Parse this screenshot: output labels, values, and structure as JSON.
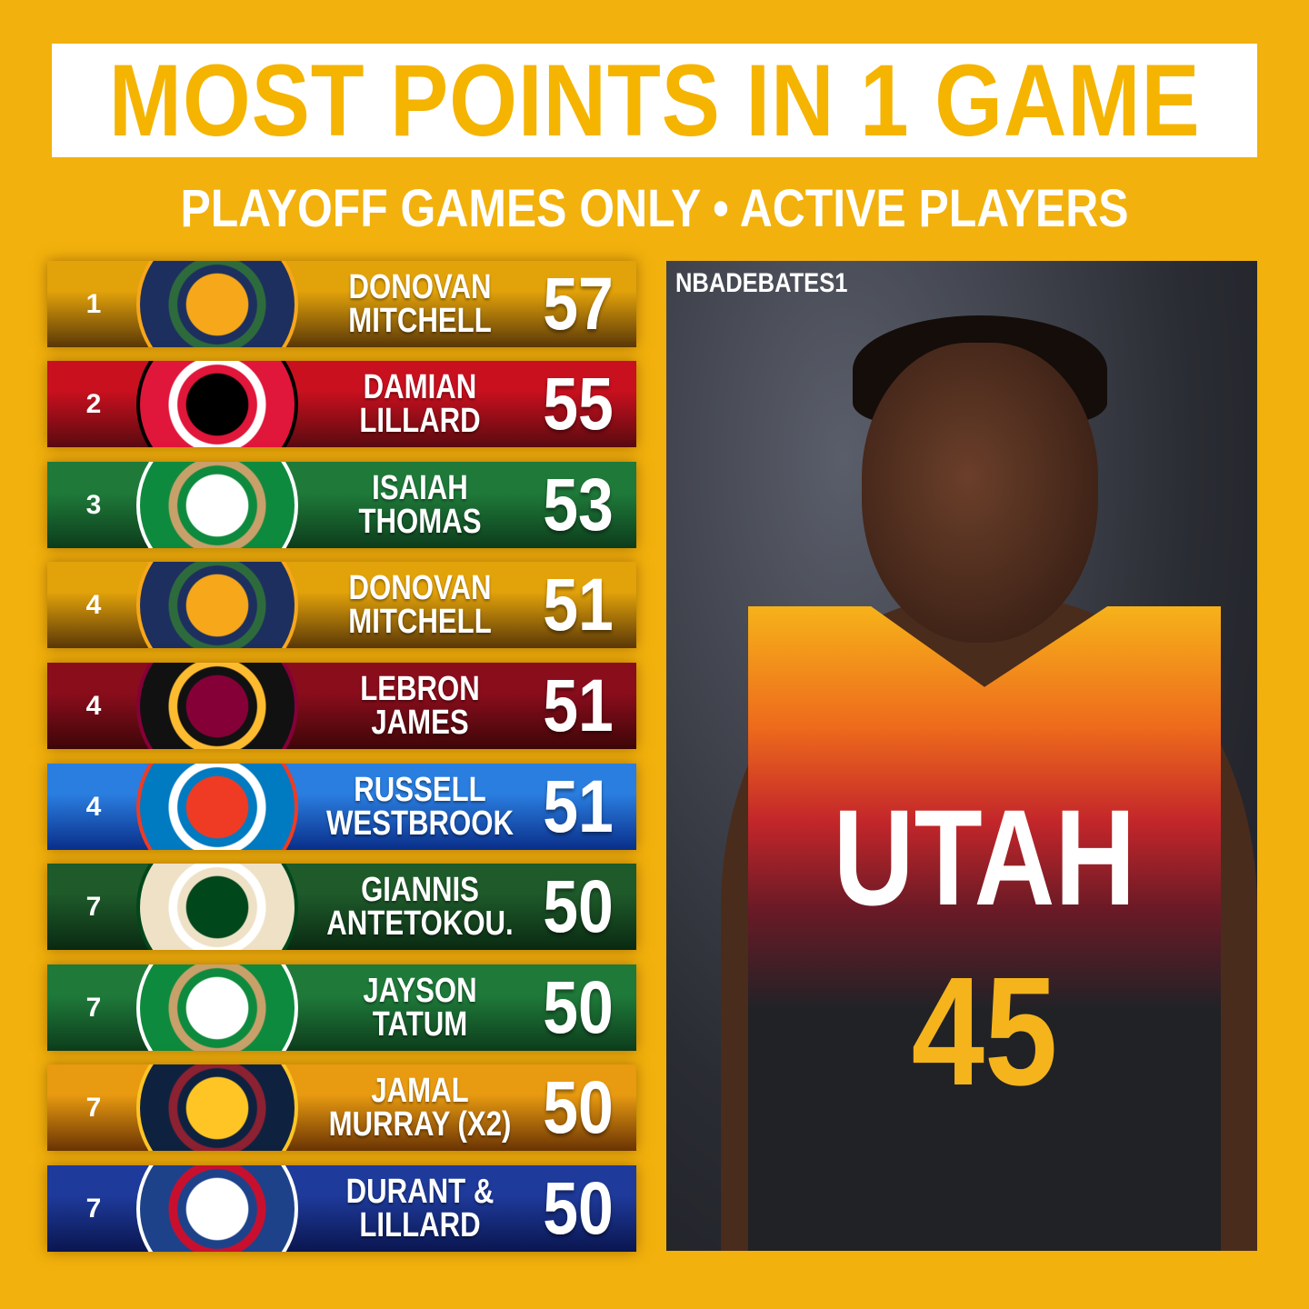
{
  "header": {
    "title": "MOST POINTS IN 1 GAME",
    "subtitle": "PLAYOFF GAMES ONLY • ACTIVE PLAYERS"
  },
  "rows": [
    {
      "rank": "1",
      "name1": "DONOVAN",
      "name2": "MITCHELL",
      "points": "57",
      "logo": "utah-jazz-logo",
      "bg": [
        "#e2a20a",
        "#5a3808"
      ],
      "logo_colors": [
        "#1d2f5e",
        "#f6a71a",
        "#2e6b3c"
      ]
    },
    {
      "rank": "2",
      "name1": "DAMIAN",
      "name2": "LILLARD",
      "points": "55",
      "logo": "portland-trail-blazers-logo",
      "bg": [
        "#c8101e",
        "#5a0a10"
      ],
      "logo_colors": [
        "#e0163a",
        "#000000",
        "#ffffff"
      ]
    },
    {
      "rank": "3",
      "name1": "ISAIAH",
      "name2": "THOMAS",
      "points": "53",
      "logo": "boston-celtics-logo",
      "bg": [
        "#1f7a3a",
        "#0d3d1c"
      ],
      "logo_colors": [
        "#0e8a3e",
        "#ffffff",
        "#c8a06a"
      ]
    },
    {
      "rank": "4",
      "name1": "DONOVAN",
      "name2": "MITCHELL",
      "points": "51",
      "logo": "utah-jazz-logo",
      "bg": [
        "#e2a20a",
        "#5a3808"
      ],
      "logo_colors": [
        "#1d2f5e",
        "#f6a71a",
        "#2e6b3c"
      ]
    },
    {
      "rank": "4",
      "name1": "LEBRON",
      "name2": "JAMES",
      "points": "51",
      "logo": "cleveland-cavaliers-logo",
      "bg": [
        "#8a0d1c",
        "#3e0608"
      ],
      "logo_colors": [
        "#111111",
        "#860038",
        "#fdbb30"
      ]
    },
    {
      "rank": "4",
      "name1": "RUSSELL",
      "name2": "WESTBROOK",
      "points": "51",
      "logo": "okc-thunder-logo",
      "bg": [
        "#2a7ee0",
        "#0a2f8a"
      ],
      "logo_colors": [
        "#007ac1",
        "#ef3b24",
        "#ffffff"
      ]
    },
    {
      "rank": "7",
      "name1": "GIANNIS",
      "name2": "ANTETOKOU.",
      "points": "50",
      "logo": "milwaukee-bucks-logo",
      "bg": [
        "#1e5a2a",
        "#0a2a12"
      ],
      "logo_colors": [
        "#eee1c6",
        "#00471b",
        "#ffffff"
      ]
    },
    {
      "rank": "7",
      "name1": "JAYSON",
      "name2": "TATUM",
      "points": "50",
      "logo": "boston-celtics-logo",
      "bg": [
        "#1f7a3a",
        "#0d3d1c"
      ],
      "logo_colors": [
        "#0e8a3e",
        "#ffffff",
        "#c8a06a"
      ]
    },
    {
      "rank": "7",
      "name1": "JAMAL",
      "name2": "MURRAY (X2)",
      "points": "50",
      "logo": "denver-nuggets-logo",
      "bg": [
        "#e89a10",
        "#6a3404"
      ],
      "logo_colors": [
        "#0e2240",
        "#fec524",
        "#8b2131"
      ]
    },
    {
      "rank": "7",
      "name1": "DURANT &",
      "name2": "LILLARD",
      "points": "50",
      "logo": "nba-logo",
      "bg": [
        "#1e3a9a",
        "#0a1650"
      ],
      "logo_colors": [
        "#1d428a",
        "#ffffff",
        "#c8102e"
      ]
    }
  ],
  "photo": {
    "watermark": "NBADEBATES1",
    "jersey_text": "UTAH",
    "jersey_number": "45"
  },
  "colors": {
    "background": "#f2b10c",
    "title_text": "#f5b400",
    "title_box": "#ffffff"
  }
}
